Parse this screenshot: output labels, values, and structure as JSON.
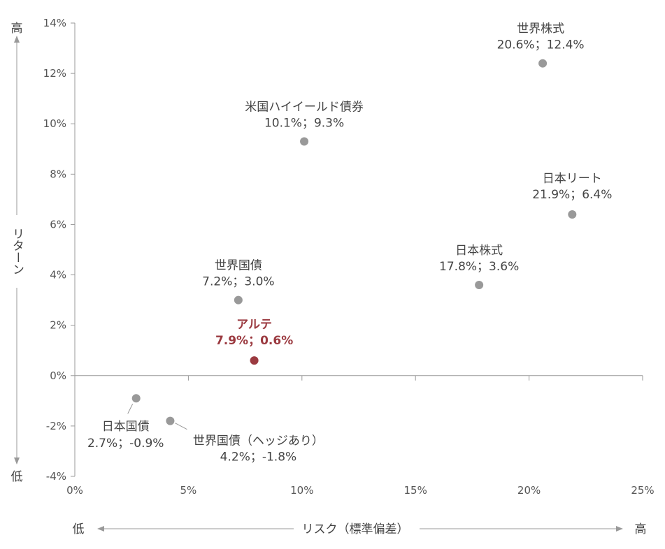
{
  "chart_data": {
    "type": "scatter",
    "xlabel": "リスク（標準偏差）",
    "ylabel": "リターン",
    "x_low": "低",
    "x_high": "高",
    "y_low": "低",
    "y_high": "高",
    "xlim": [
      0,
      25
    ],
    "ylim": [
      -4,
      14
    ],
    "x_ticks": [
      0,
      5,
      10,
      15,
      20,
      25
    ],
    "x_tick_labels": [
      "0%",
      "5%",
      "10%",
      "15%",
      "20%",
      "25%"
    ],
    "y_ticks": [
      -4,
      -2,
      0,
      2,
      4,
      6,
      8,
      10,
      12,
      14
    ],
    "y_tick_labels": [
      "-4%",
      "-2%",
      "0%",
      "2%",
      "4%",
      "6%",
      "8%",
      "10%",
      "12%",
      "14%"
    ],
    "grid": false,
    "colors": {
      "default": "#999999",
      "highlight": "#9b3a40"
    },
    "points": [
      {
        "name": "世界株式",
        "value_label": "20.6%；12.4%",
        "x": 20.6,
        "y": 12.4,
        "highlight": false
      },
      {
        "name": "米国ハイイールド債券",
        "value_label": "10.1%；9.3%",
        "x": 10.1,
        "y": 9.3,
        "highlight": false
      },
      {
        "name": "日本リート",
        "value_label": "21.9%；6.4%",
        "x": 21.9,
        "y": 6.4,
        "highlight": false
      },
      {
        "name": "日本株式",
        "value_label": "17.8%；3.6%",
        "x": 17.8,
        "y": 3.6,
        "highlight": false
      },
      {
        "name": "世界国債",
        "value_label": "7.2%；3.0%",
        "x": 7.2,
        "y": 3.0,
        "highlight": false
      },
      {
        "name": "アルテ",
        "value_label": "7.9%；0.6%",
        "x": 7.9,
        "y": 0.6,
        "highlight": true
      },
      {
        "name": "日本国債",
        "value_label": "2.7%；-0.9%",
        "x": 2.7,
        "y": -0.9,
        "highlight": false
      },
      {
        "name": "世界国債（ヘッジあり）",
        "value_label": "4.2%；-1.8%",
        "x": 4.2,
        "y": -1.8,
        "highlight": false
      }
    ]
  }
}
